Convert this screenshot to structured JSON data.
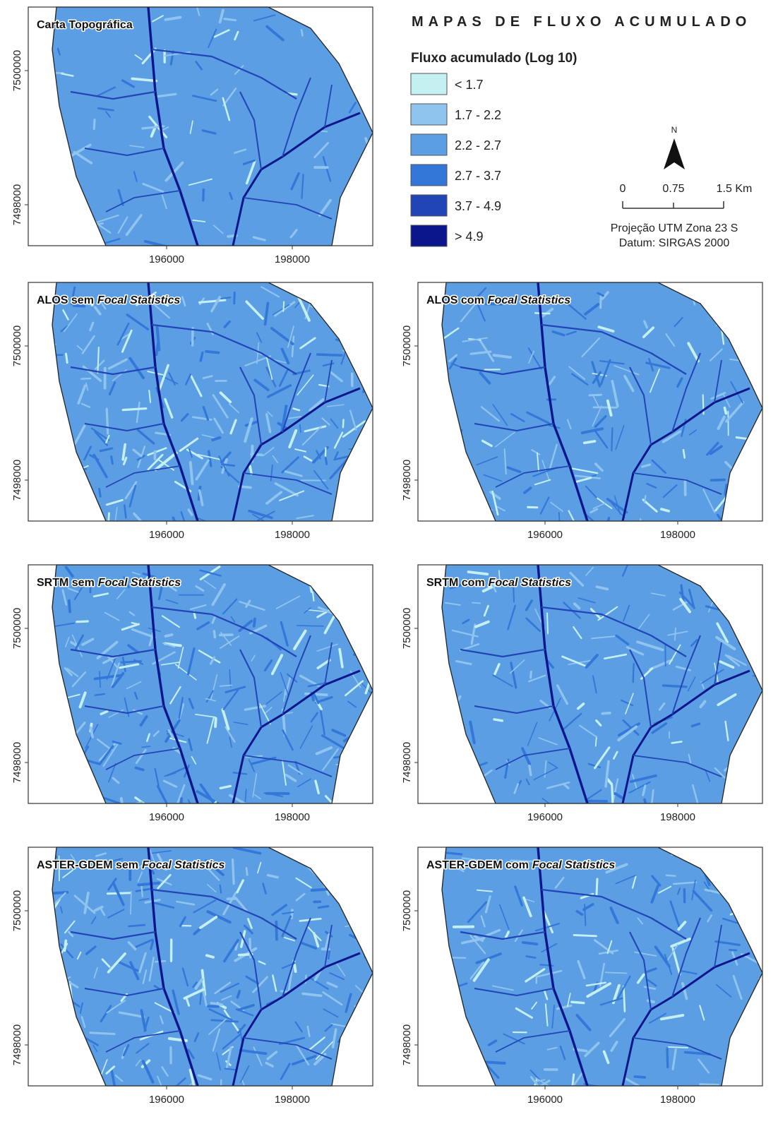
{
  "title": "MAPAS DE FLUXO ACUMULADO",
  "legend": {
    "title": "Fluxo acumulado (Log 10)",
    "items": [
      {
        "label": "< 1.7",
        "color": "#c4f0f2"
      },
      {
        "label": "1.7 - 2.2",
        "color": "#8fc4ee"
      },
      {
        "label": "2.2 - 2.7",
        "color": "#5b9ee3"
      },
      {
        "label": "2.7 - 3.7",
        "color": "#3378d9"
      },
      {
        "label": "3.7 - 4.9",
        "color": "#2145b6"
      },
      {
        "label": "> 4.9",
        "color": "#0b168c"
      }
    ]
  },
  "north_arrow": "N",
  "scale_bar": [
    "0",
    "0.75",
    "1.5 Km"
  ],
  "projection": [
    "Projeção UTM Zona 23 S",
    "Datum: SIRGAS 2000"
  ],
  "panels": [
    {
      "title": "Carta Topográfica",
      "xticks": [
        196000,
        198000
      ],
      "yticks": [
        7500000,
        7498000
      ]
    },
    {
      "title": "ALOS sem",
      "title_italic": "Focal Statistics",
      "xticks": [
        196000,
        198000
      ],
      "yticks": [
        7500000,
        7498000
      ]
    },
    {
      "title": "ALOS com",
      "title_italic": "Focal Statistics",
      "xticks": [
        196000,
        198000
      ],
      "yticks": [
        7500000,
        7498000
      ]
    },
    {
      "title": "SRTM sem",
      "title_italic": "Focal Statistics",
      "xticks": [
        196000,
        198000
      ],
      "yticks": [
        7500000,
        7498000
      ]
    },
    {
      "title": "SRTM com",
      "title_italic": "Focal Statistics",
      "xticks": [
        196000,
        198000
      ],
      "yticks": [
        7500000,
        7498000
      ]
    },
    {
      "title": "ASTER-GDEM sem",
      "title_italic": "Focal Statistics",
      "xticks": [
        196000,
        198000
      ],
      "yticks": [
        7500000,
        7498000
      ]
    },
    {
      "title": "ASTER-GDEM com",
      "title_italic": "Focal Statistics",
      "xticks": [
        196000,
        198000
      ],
      "yticks": [
        7500000,
        7498000
      ]
    }
  ]
}
